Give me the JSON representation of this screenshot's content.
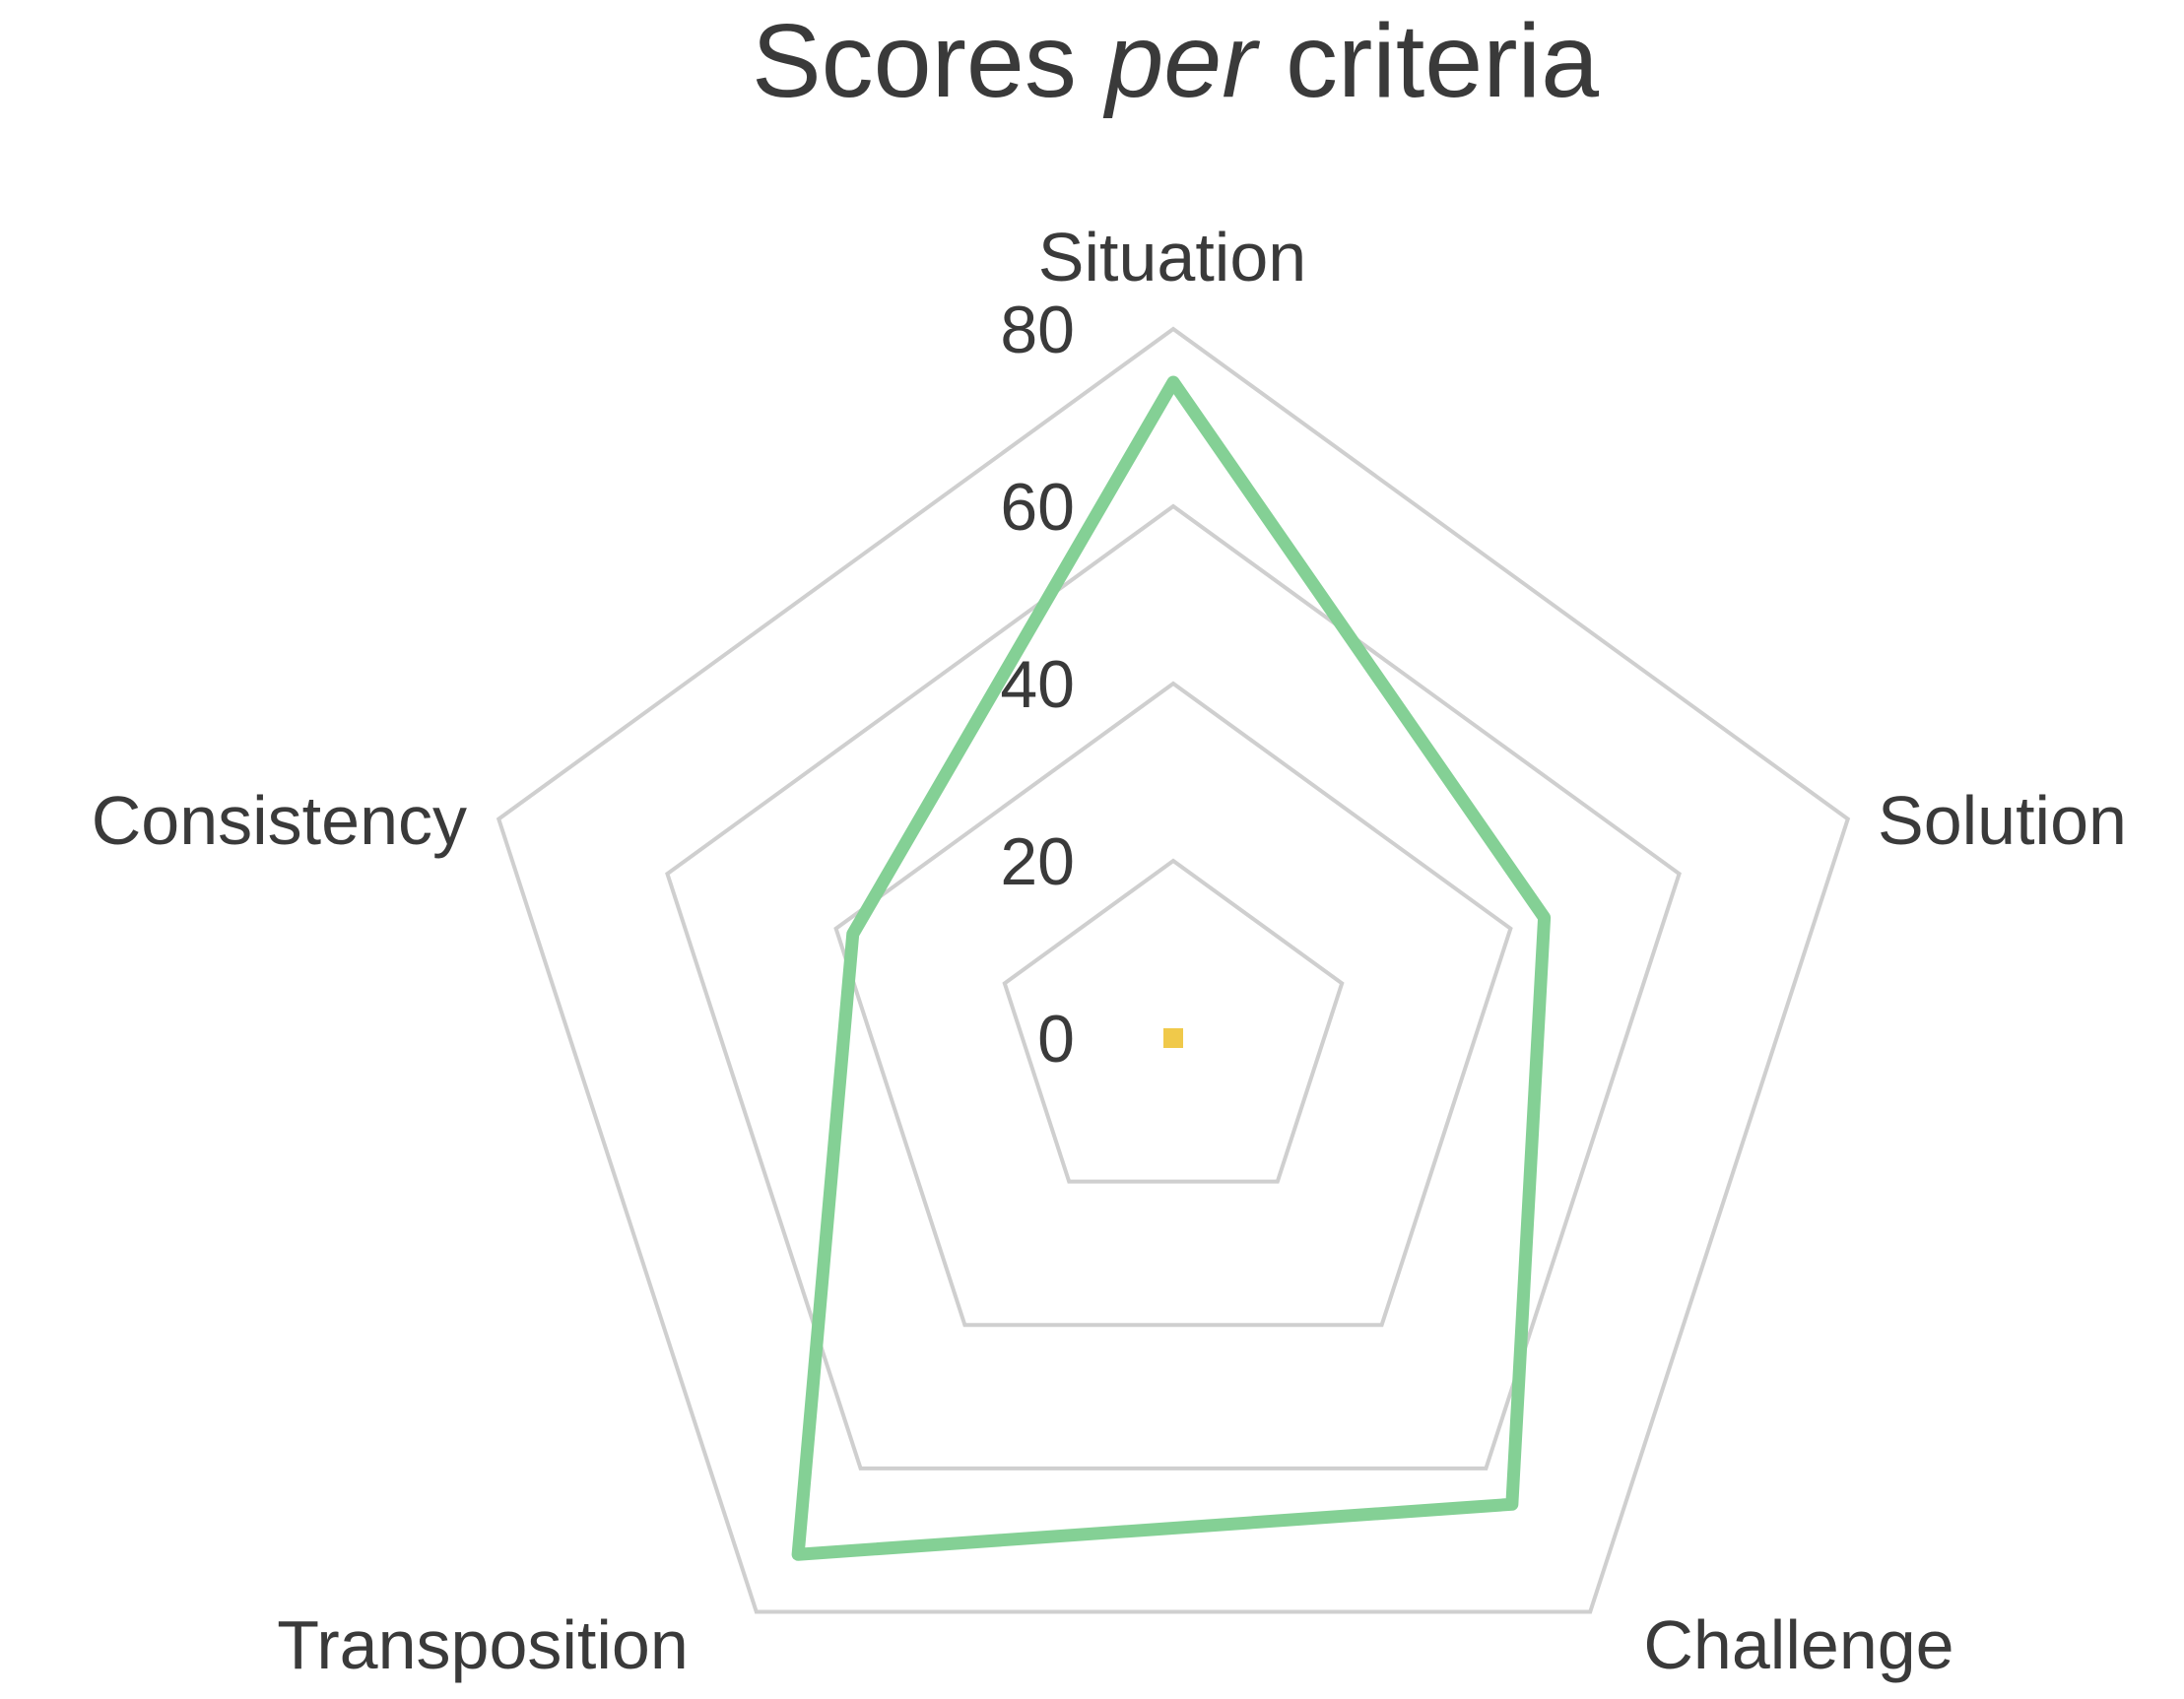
{
  "chart_data": {
    "type": "radar",
    "title_parts": [
      {
        "text": "Scores ",
        "italic": false
      },
      {
        "text": "per",
        "italic": true
      },
      {
        "text": " criteria",
        "italic": false
      }
    ],
    "categories": [
      "Situation",
      "Solution",
      "Challenge",
      "Transposition",
      "Consistency"
    ],
    "rlim": [
      0,
      80
    ],
    "ticks": [
      "0",
      "20",
      "40",
      "60",
      "80"
    ],
    "tick_values": [
      0,
      20,
      40,
      60,
      80
    ],
    "grid": true,
    "legend": "none",
    "series": [
      {
        "values": [
          74,
          44,
          65,
          72,
          38
        ],
        "color": "#84d095"
      },
      {
        "values": [
          0,
          0,
          0,
          0,
          0
        ],
        "color": "#f0c94a"
      }
    ],
    "grid_color": "#cfcfcf",
    "text_color": "#3a3a3a"
  }
}
